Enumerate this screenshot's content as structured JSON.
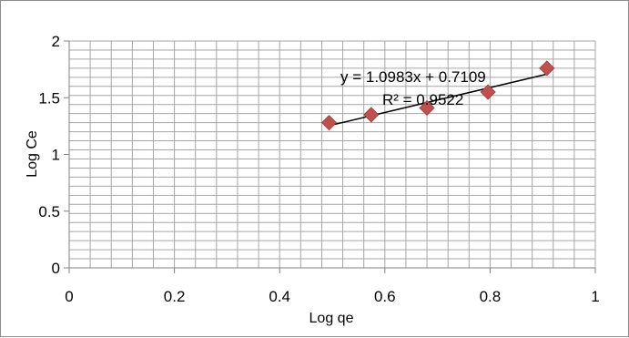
{
  "chart_data": {
    "type": "scatter",
    "xlabel": "Log qe",
    "ylabel": "Log Ce",
    "xlim": [
      0,
      1
    ],
    "ylim": [
      0,
      2
    ],
    "x_ticks": [
      0,
      0.2,
      0.4,
      0.6,
      0.8,
      1
    ],
    "y_ticks": [
      0,
      0.5,
      1,
      1.5,
      2
    ],
    "x_tick_labels": [
      "0",
      "0.2",
      "0.4",
      "0.6",
      "0.8",
      "1"
    ],
    "y_tick_labels": [
      "0",
      "0.5",
      "1",
      "1.5",
      "2"
    ],
    "grid": true,
    "legend": "none",
    "series": [
      {
        "marker": "diamond",
        "color": "#c0504d",
        "points": [
          {
            "x": 0.494,
            "y": 1.28
          },
          {
            "x": 0.574,
            "y": 1.35
          },
          {
            "x": 0.68,
            "y": 1.41
          },
          {
            "x": 0.796,
            "y": 1.55
          },
          {
            "x": 0.908,
            "y": 1.76
          }
        ]
      }
    ],
    "trendline": {
      "type": "linear",
      "slope": 1.0983,
      "intercept": 0.7109,
      "x_range": [
        0.494,
        0.908
      ],
      "color": "#000000",
      "equation_label": "y = 1.0983x + 0.7109",
      "r2_label": "R² = 0.9522"
    }
  }
}
